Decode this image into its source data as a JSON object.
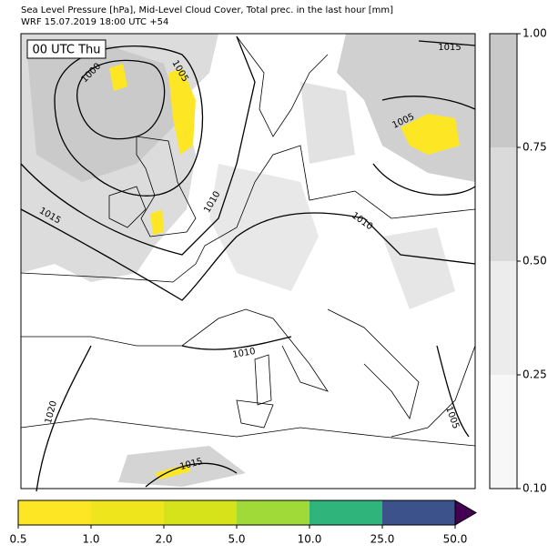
{
  "header": {
    "title": "Sea Level Pressure [hPa], Mid-Level Cloud Cover, Total prec. in the last hour [mm]",
    "subtitle": "WRF 15.07.2019 18:00 UTC +54"
  },
  "map": {
    "time_label": "00 UTC Thu",
    "contour_labels": [
      "1000",
      "1005",
      "1015",
      "1015",
      "1010",
      "1005",
      "1010",
      "1010",
      "1020",
      "1015",
      "1005"
    ]
  },
  "cloud_colorbar": {
    "ticks": [
      "0.10",
      "0.25",
      "0.50",
      "0.75",
      "1.00"
    ],
    "colors": [
      "#f7f7f7",
      "#ececec",
      "#dadada",
      "#c8c8c8"
    ]
  },
  "precip_colorbar": {
    "ticks": [
      "0.5",
      "1.0",
      "2.0",
      "5.0",
      "10.0",
      "25.0",
      "50.0"
    ],
    "colors": [
      "#fde725",
      "#efe51c",
      "#d6e21a",
      "#a0da39",
      "#2fb47c",
      "#3b528b"
    ],
    "extend_color": "#440154"
  }
}
